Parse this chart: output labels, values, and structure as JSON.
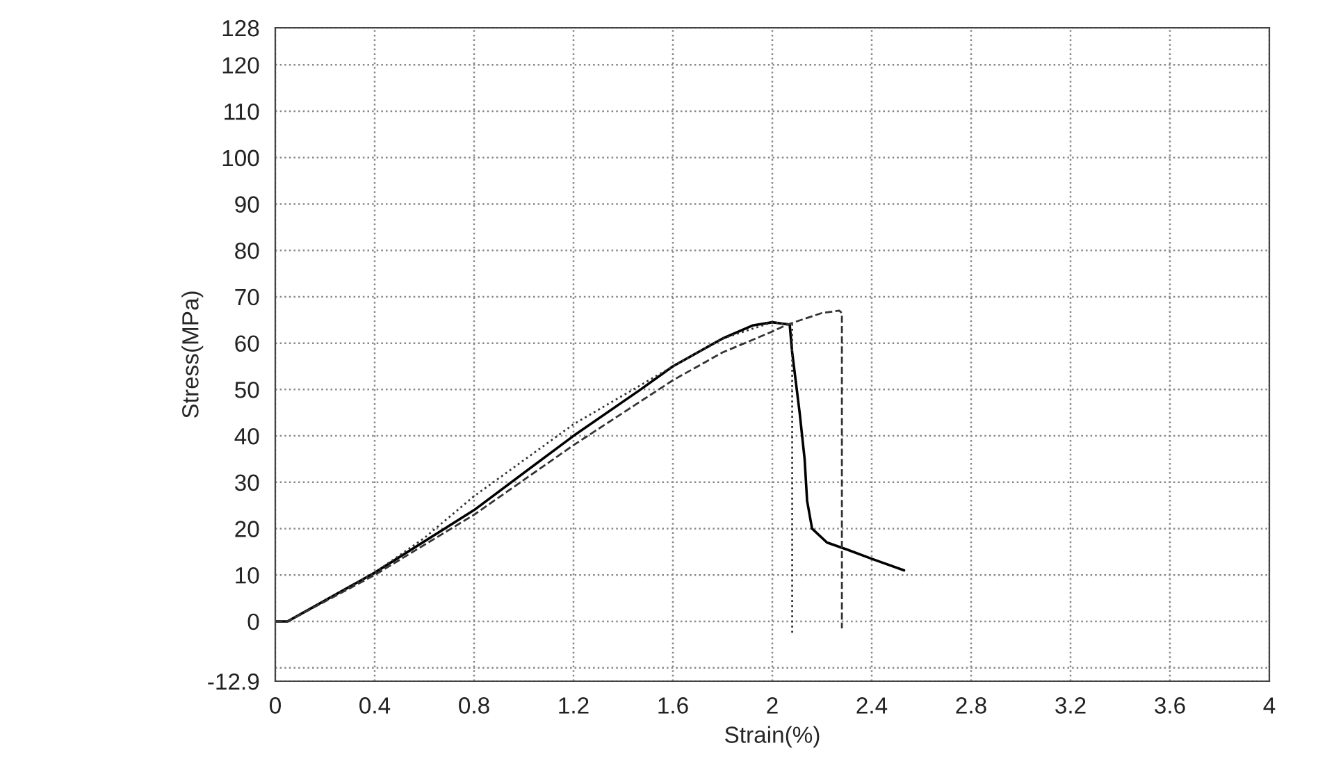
{
  "chart_data": {
    "type": "line",
    "xlabel": "Strain(%)",
    "ylabel": "Stress(MPa)",
    "xlim": [
      0,
      4
    ],
    "xticks": [
      0,
      0.4,
      0.8,
      1.2,
      1.6,
      2,
      2.4,
      2.8,
      3.2,
      3.6,
      4
    ],
    "ylim": [
      -12.9,
      128
    ],
    "yticks": [
      {
        "value": -12.9,
        "label": "-12.9"
      },
      {
        "value": -10,
        "label": null
      },
      0,
      10,
      20,
      30,
      40,
      50,
      60,
      70,
      80,
      90,
      100,
      110,
      120,
      128
    ],
    "grid": true,
    "series": [
      {
        "color": "#000000",
        "line_style": "solid",
        "x": [
          0,
          0.05,
          0.1,
          0.2,
          0.4,
          0.8,
          1.2,
          1.47,
          1.6,
          1.8,
          1.92,
          2.0,
          2.07,
          2.08,
          2.11,
          2.13,
          2.14,
          2.16,
          2.22,
          2.3,
          2.4,
          2.53
        ],
        "values": [
          0,
          0,
          1.5,
          4.5,
          10.5,
          24,
          40,
          50,
          55,
          61,
          63.8,
          64.5,
          64,
          58,
          45,
          35,
          26,
          20,
          17,
          15.5,
          13.5,
          11
        ]
      },
      {
        "color": "#333333",
        "line_style": "dotted",
        "x": [
          0,
          0.05,
          0.4,
          0.6,
          0.8,
          1.2,
          1.6,
          1.8,
          2.0,
          2.08,
          2.08
        ],
        "values": [
          0,
          0,
          10.5,
          18,
          27,
          42.5,
          55,
          61,
          64.5,
          64,
          -3
        ]
      },
      {
        "color": "#333333",
        "line_style": "dashed",
        "x": [
          0,
          0.05,
          0.4,
          0.8,
          1.2,
          1.6,
          1.8,
          2.0,
          2.06,
          2.2,
          2.27,
          2.28,
          2.28
        ],
        "values": [
          0,
          0,
          10,
          23,
          38,
          52,
          58,
          62.5,
          64,
          66.5,
          67,
          66.5,
          -1.5
        ]
      }
    ]
  }
}
